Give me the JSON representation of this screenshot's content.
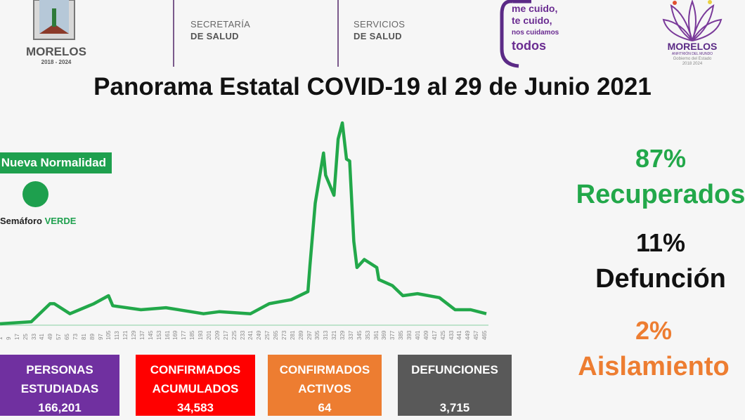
{
  "header": {
    "logo_morelos": {
      "name": "MORELOS",
      "years": "2018 - 2024"
    },
    "secretaria": {
      "line1": "SECRETARÍA",
      "line2": "DE SALUD"
    },
    "servicios": {
      "line1": "SERVICIOS",
      "line2": "DE SALUD"
    },
    "campaign": {
      "line1": "me cuido,",
      "line2": "te cuido,",
      "line3": "nos cuidamos",
      "line4": "todos"
    },
    "logo_gobierno": {
      "name": "MORELOS",
      "tagline": "ANFITRIÓN DEL MUNDO",
      "sub": "Gobierno del Estado",
      "years": "2018 2024"
    }
  },
  "title": "Panorama Estatal COVID-19 al 29 de Junio 2021",
  "status": {
    "badge": "Nueva Normalidad",
    "semaforo_label": "Semáforo",
    "semaforo_value": "VERDE",
    "semaforo_color": "#1ea04e"
  },
  "chart_data": {
    "type": "line",
    "title": "",
    "xlabel": "",
    "ylabel": "",
    "y_axis_labels_shown": false,
    "grid": false,
    "color": "#22a84a",
    "xlim": [
      1,
      467
    ],
    "ylim": [
      0,
      100
    ],
    "x_ticks": [
      1,
      9,
      17,
      25,
      33,
      41,
      49,
      57,
      65,
      73,
      81,
      89,
      97,
      105,
      113,
      121,
      129,
      137,
      145,
      153,
      161,
      169,
      177,
      185,
      193,
      201,
      209,
      217,
      225,
      233,
      241,
      249,
      257,
      265,
      273,
      281,
      289,
      297,
      305,
      313,
      321,
      329,
      337,
      345,
      353,
      361,
      369,
      377,
      385,
      393,
      401,
      409,
      417,
      425,
      433,
      441,
      449,
      457,
      465
    ],
    "x": [
      1,
      31,
      49,
      53,
      68,
      91,
      105,
      109,
      136,
      160,
      196,
      211,
      241,
      259,
      280,
      296,
      298,
      303,
      311,
      313,
      321,
      325,
      329,
      333,
      336,
      340,
      343,
      350,
      362,
      364,
      377,
      387,
      401,
      422,
      437,
      452,
      467
    ],
    "y": [
      0,
      1,
      10,
      10,
      5,
      10,
      14,
      9,
      7,
      8,
      5,
      6,
      5,
      10,
      12,
      16,
      29,
      60,
      85,
      74,
      64,
      92,
      100,
      82,
      81,
      41,
      28,
      32,
      28,
      22,
      19,
      14,
      15,
      13,
      7,
      7,
      5
    ]
  },
  "stats_right": [
    {
      "pct": "87%",
      "label": "Recuperados",
      "color": "#22a84a"
    },
    {
      "pct": "11%",
      "label": "Defunción",
      "color": "#111111"
    },
    {
      "pct": "2%",
      "label": "Aislamiento",
      "color": "#ed7d31"
    }
  ],
  "boxes": [
    {
      "line1": "PERSONAS",
      "line2": "ESTUDIADAS",
      "value": "166,201",
      "color": "#7030a0"
    },
    {
      "line1": "CONFIRMADOS",
      "line2": "ACUMULADOS",
      "value": "34,583",
      "color": "#ff0000"
    },
    {
      "line1": "CONFIRMADOS",
      "line2": "ACTIVOS",
      "value": "64",
      "color": "#ed7d31"
    },
    {
      "line1": "DEFUNCIONES",
      "line2": "",
      "value": "3,715",
      "color": "#595959"
    }
  ]
}
